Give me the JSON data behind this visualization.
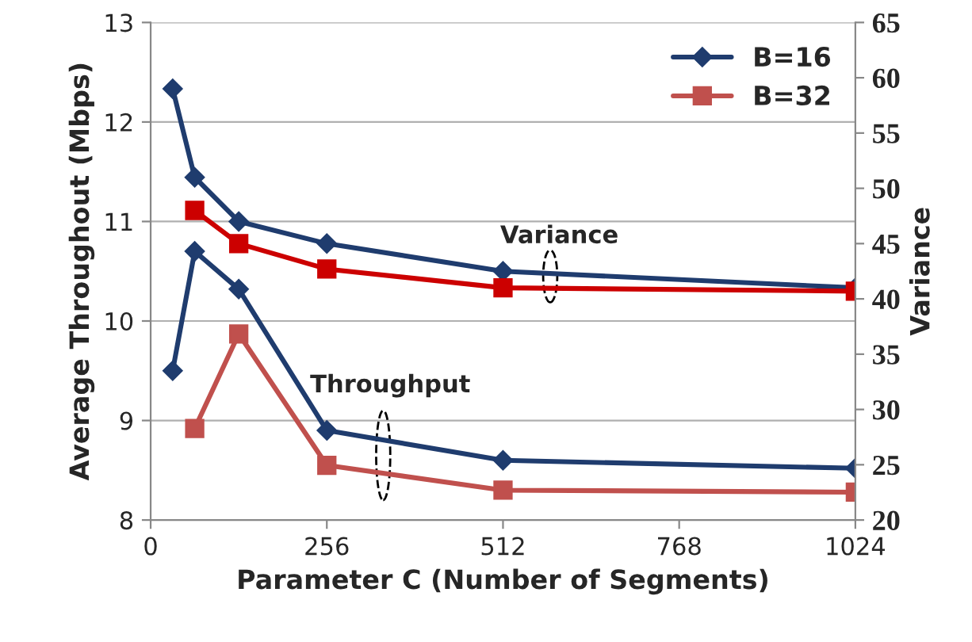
{
  "chart_data": {
    "type": "line",
    "xlabel": "Parameter C (Number of Segments)",
    "ylabel": "Average Throughout (Mbps)",
    "y2label": "Variance",
    "xlim": [
      0,
      1024
    ],
    "xticks": [
      0,
      256,
      512,
      768,
      1024
    ],
    "ylim": [
      8,
      13
    ],
    "yticks": [
      8,
      9,
      10,
      11,
      12,
      13
    ],
    "y2lim": [
      20,
      65
    ],
    "y2ticks": [
      20,
      25,
      30,
      35,
      40,
      45,
      50,
      55,
      60,
      65
    ],
    "grid": "y",
    "legend": "top right",
    "series": [
      {
        "name": "B=16",
        "color": "#1f3c6e",
        "marker": "diamond",
        "x": [
          32,
          64,
          128,
          256,
          512,
          1024
        ],
        "values": [
          9.5,
          10.7,
          10.32,
          8.9,
          8.6,
          8.52
        ]
      },
      {
        "name": "B=32",
        "color": "#c0504d",
        "marker": "square",
        "x": [
          64,
          128,
          256,
          512,
          1024
        ],
        "values": [
          8.92,
          9.87,
          8.55,
          8.3,
          8.28
        ]
      },
      {
        "color": "#1f3c6e",
        "marker": "diamond",
        "axis": "y2",
        "x": [
          32,
          64,
          128,
          256,
          512,
          1024
        ],
        "values": [
          59,
          51,
          47,
          45,
          42.5,
          41
        ]
      },
      {
        "color": "#cc0000",
        "marker": "square",
        "axis": "y2",
        "x": [
          64,
          128,
          256,
          512,
          1024
        ],
        "values": [
          48,
          45,
          42.7,
          41,
          40.7
        ]
      }
    ],
    "annotations": [
      "Variance",
      "Throughput"
    ]
  }
}
